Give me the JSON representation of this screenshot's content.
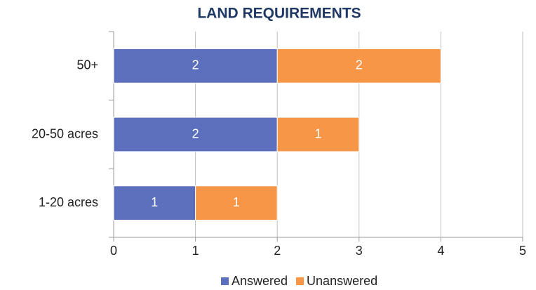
{
  "chart_data": {
    "type": "bar",
    "orientation": "horizontal",
    "stacked": true,
    "title": "LAND REQUIREMENTS",
    "categories": [
      "1-20 acres",
      "20-50 acres",
      "50+"
    ],
    "series": [
      {
        "name": "Answered",
        "color": "#5b6fbd",
        "values": [
          1,
          2,
          2
        ]
      },
      {
        "name": "Unanswered",
        "color": "#f79646",
        "values": [
          1,
          1,
          2
        ]
      }
    ],
    "xlim": [
      0,
      5
    ],
    "xticks": [
      0,
      1,
      2,
      3,
      4,
      5
    ],
    "grid": true,
    "legend": "bottom"
  }
}
